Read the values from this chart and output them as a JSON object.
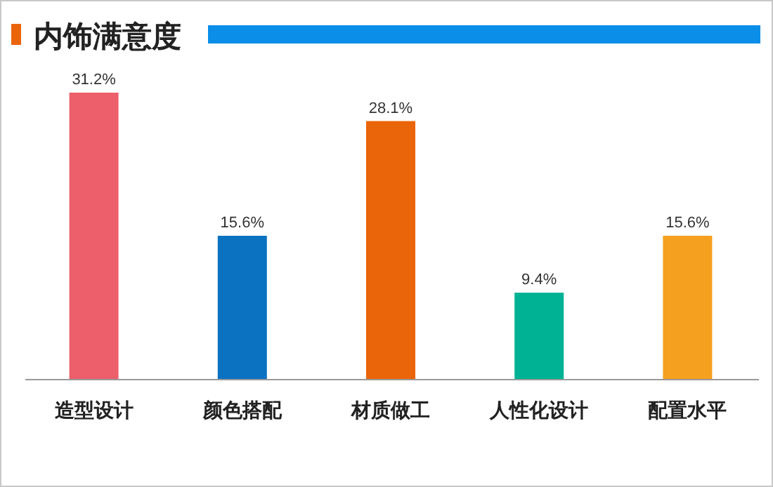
{
  "chart_data": {
    "type": "bar",
    "title": "内饰满意度",
    "categories": [
      "造型设计",
      "颜色搭配",
      "材质做工",
      "人性化设计",
      "配置水平"
    ],
    "values": [
      31.2,
      15.6,
      28.1,
      9.4,
      15.6
    ],
    "colors": [
      "#ec5f6b",
      "#0b72c1",
      "#ea6409",
      "#00b294",
      "#f5a01f"
    ],
    "value_labels": [
      "31.2%",
      "15.6%",
      "28.1%",
      "9.4%",
      "15.6%"
    ]
  }
}
